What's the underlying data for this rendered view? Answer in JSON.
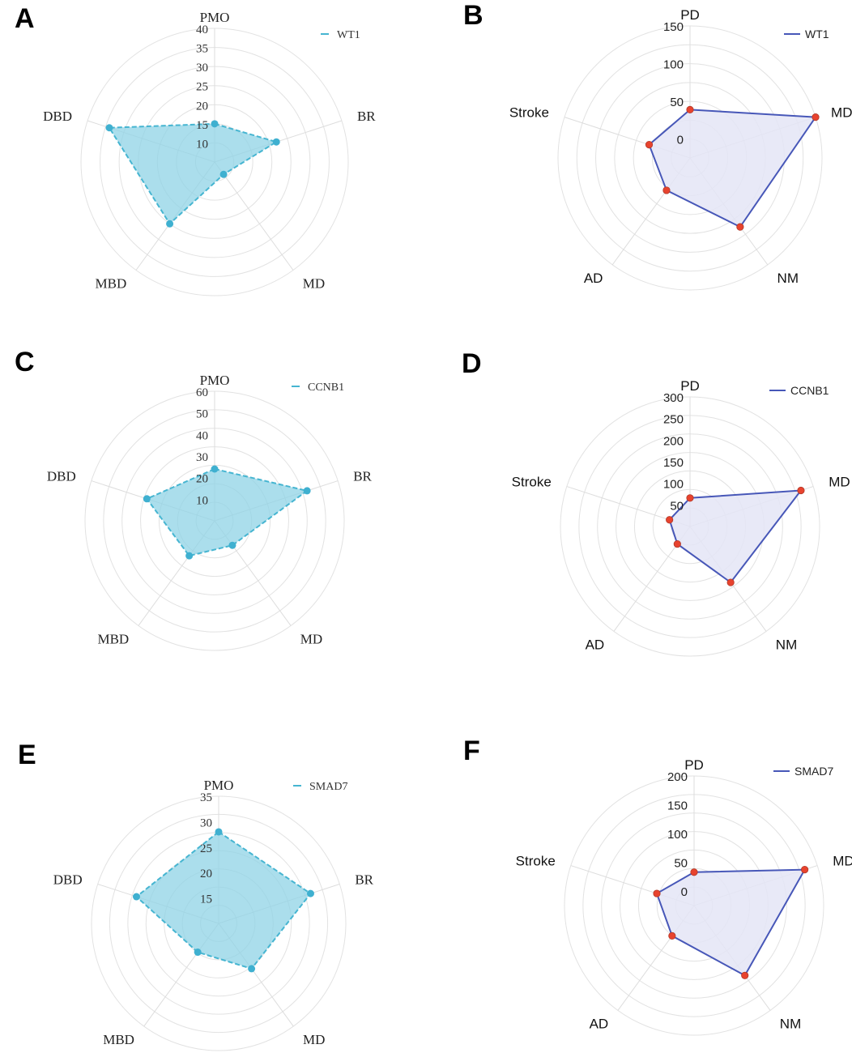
{
  "chart_data": [
    {
      "panel": "A",
      "type": "radar",
      "legend": "WT1",
      "axes": [
        "PMO",
        "BR",
        "MD",
        "MBD",
        "DBD"
      ],
      "ticks": [
        "10",
        "15",
        "20",
        "25",
        "30",
        "35",
        "40"
      ],
      "rlim": [
        5,
        40
      ],
      "series": [
        {
          "name": "WT1",
          "values": [
            15,
            22,
            9,
            25,
            34
          ]
        }
      ],
      "legend_position": "top-right",
      "colors": {
        "line": "#46b5d1",
        "fill": "#8fd3e6",
        "point": "#3fb0d0"
      }
    },
    {
      "panel": "B",
      "type": "radar",
      "legend": "WT1",
      "axes": [
        "PD",
        "MD",
        "NM",
        "AD",
        "Stroke"
      ],
      "ticks": [
        "0",
        "50",
        "100",
        "150"
      ],
      "rlim": [
        -25,
        150
      ],
      "series": [
        {
          "name": "WT1",
          "values": [
            39,
            150,
            88,
            28,
            32
          ]
        }
      ],
      "legend_position": "top-right",
      "colors": {
        "line": "#4757b8",
        "fill": "#e4e5f6",
        "point": "#e8432e"
      }
    },
    {
      "panel": "C",
      "type": "radar",
      "legend": "CCNB1",
      "axes": [
        "PMO",
        "BR",
        "MD",
        "MBD",
        "DBD"
      ],
      "ticks": [
        "10",
        "20",
        "30",
        "40",
        "50",
        "60"
      ],
      "rlim": [
        0,
        60
      ],
      "series": [
        {
          "name": "CCNB1",
          "values": [
            24,
            45,
            14,
            20,
            33
          ]
        }
      ],
      "legend_position": "top-right",
      "colors": {
        "line": "#46b5d1",
        "fill": "#8fd3e6",
        "point": "#3fb0d0"
      }
    },
    {
      "panel": "D",
      "type": "radar",
      "legend": "CCNB1",
      "axes": [
        "PD",
        "MD",
        "NM",
        "AD",
        "Stroke"
      ],
      "ticks": [
        "50",
        "100",
        "150",
        "200",
        "250",
        "300"
      ],
      "rlim": [
        0,
        300
      ],
      "series": [
        {
          "name": "CCNB1",
          "values": [
            66,
            270,
            160,
            50,
            50
          ]
        }
      ],
      "legend_position": "top-right",
      "colors": {
        "line": "#4757b8",
        "fill": "#e4e5f6",
        "point": "#e8432e"
      }
    },
    {
      "panel": "E",
      "type": "radar",
      "legend": "SMAD7",
      "axes": [
        "PMO",
        "BR",
        "MD",
        "MBD",
        "DBD"
      ],
      "ticks": [
        "15",
        "20",
        "25",
        "30",
        "35"
      ],
      "rlim": [
        10,
        35
      ],
      "series": [
        {
          "name": "SMAD7",
          "values": [
            28,
            29,
            21,
            17,
            27
          ]
        }
      ],
      "legend_position": "top-right",
      "colors": {
        "line": "#46b5d1",
        "fill": "#8fd3e6",
        "point": "#3fb0d0"
      }
    },
    {
      "panel": "F",
      "type": "radar",
      "legend": "SMAD7",
      "axes": [
        "PD",
        "MD",
        "NM",
        "AD",
        "Stroke"
      ],
      "ticks": [
        "0",
        "50",
        "100",
        "150",
        "200"
      ],
      "rlim": [
        -25,
        200
      ],
      "series": [
        {
          "name": "SMAD7",
          "values": [
            33,
            177,
            125,
            40,
            43
          ]
        }
      ],
      "legend_position": "top-right",
      "colors": {
        "line": "#4757b8",
        "fill": "#e4e5f6",
        "point": "#e8432e"
      }
    }
  ]
}
